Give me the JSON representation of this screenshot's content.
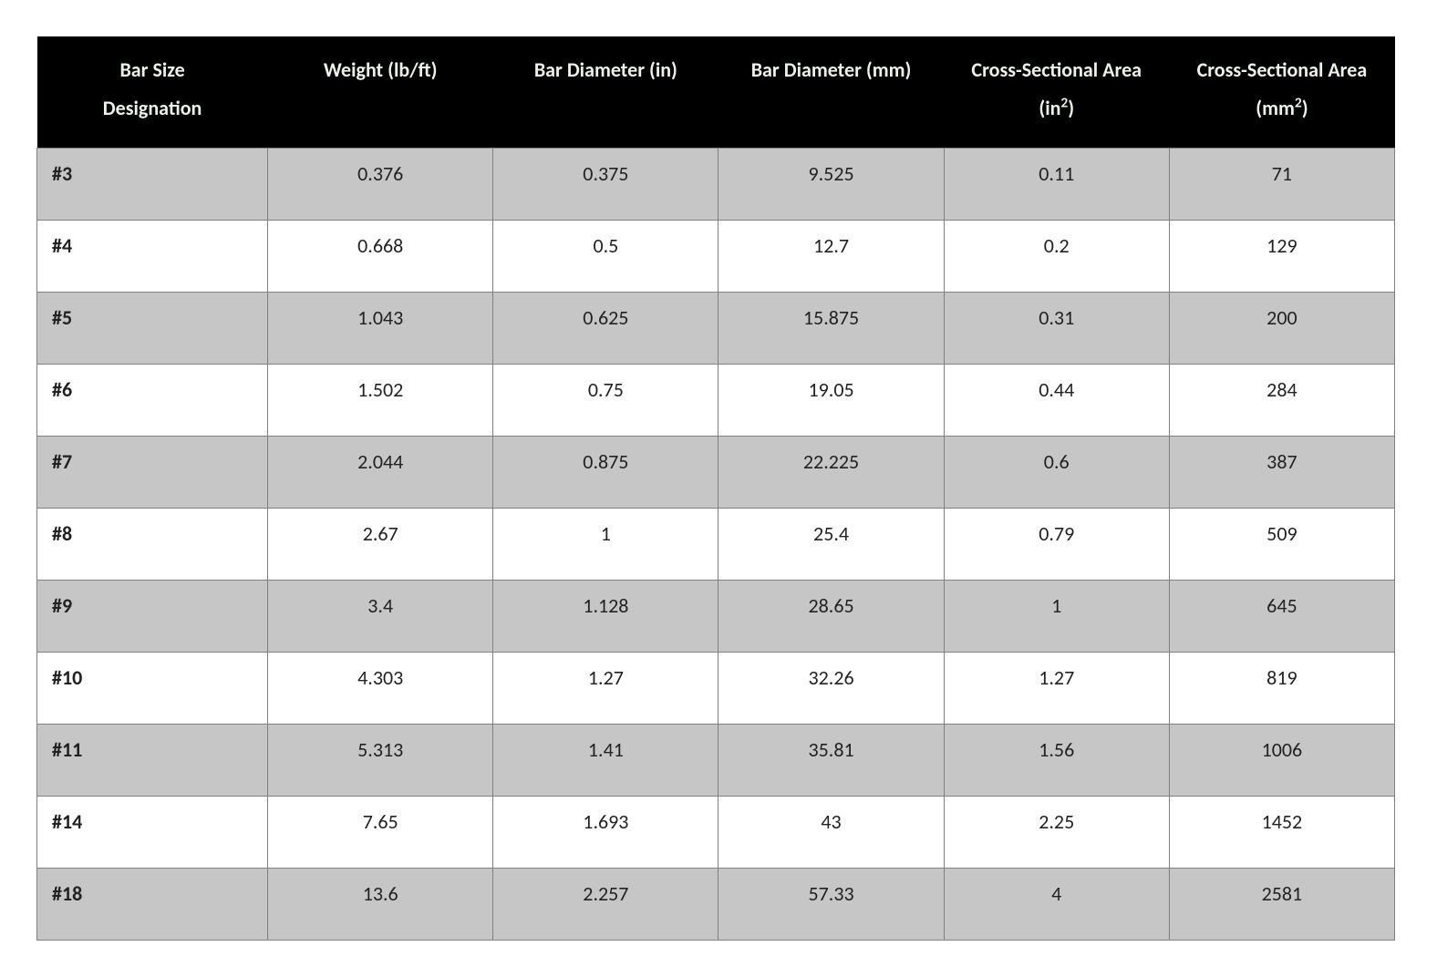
{
  "table": {
    "type": "table",
    "header_bg": "#000000",
    "header_text_color": "#ecf3e6",
    "row_odd_bg": "#c6c6c6",
    "row_even_bg": "#ffffff",
    "border_color": "#808080",
    "cell_text_color": "#222222",
    "font_family": "Calibri",
    "header_fontsize": 22,
    "cell_fontsize": 22,
    "columns": [
      {
        "label_html": "Bar Size<br>Designation",
        "align": "left",
        "bold_cells": true
      },
      {
        "label_html": "Weight (lb/ft)",
        "align": "center"
      },
      {
        "label_html": "Bar Diameter (in)",
        "align": "center"
      },
      {
        "label_html": "Bar Diameter (mm)",
        "align": "center"
      },
      {
        "label_html": "Cross-Sectional Area (in<sup>2</sup>)",
        "align": "center"
      },
      {
        "label_html": "Cross-Sectional Area (mm<sup>2</sup>)",
        "align": "center"
      }
    ],
    "rows": [
      [
        "#3",
        "0.376",
        "0.375",
        "9.525",
        "0.11",
        "71"
      ],
      [
        "#4",
        "0.668",
        "0.5",
        "12.7",
        "0.2",
        "129"
      ],
      [
        "#5",
        "1.043",
        "0.625",
        "15.875",
        "0.31",
        "200"
      ],
      [
        "#6",
        "1.502",
        "0.75",
        "19.05",
        "0.44",
        "284"
      ],
      [
        "#7",
        "2.044",
        "0.875",
        "22.225",
        "0.6",
        "387"
      ],
      [
        "#8",
        "2.67",
        "1",
        "25.4",
        "0.79",
        "509"
      ],
      [
        "#9",
        "3.4",
        "1.128",
        "28.65",
        "1",
        "645"
      ],
      [
        "#10",
        "4.303",
        "1.27",
        "32.26",
        "1.27",
        "819"
      ],
      [
        "#11",
        "5.313",
        "1.41",
        "35.81",
        "1.56",
        "1006"
      ],
      [
        "#14",
        "7.65",
        "1.693",
        "43",
        "2.25",
        "1452"
      ],
      [
        "#18",
        "13.6",
        "2.257",
        "57.33",
        "4",
        "2581"
      ]
    ]
  }
}
